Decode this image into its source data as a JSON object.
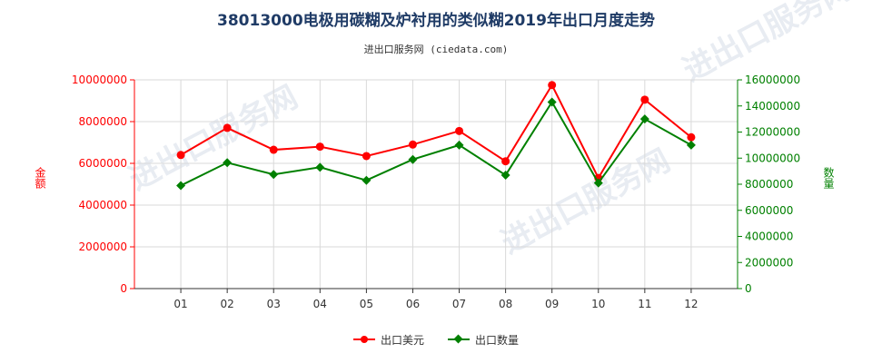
{
  "header": {
    "title": "38013000电极用碳糊及炉衬用的类似糊2019年出口月度走势",
    "subtitle": "进出口服务网 (ciedata.com)"
  },
  "watermark": "进出口服务网",
  "chart_data": {
    "type": "line",
    "categories": [
      "01",
      "02",
      "03",
      "04",
      "05",
      "06",
      "07",
      "08",
      "09",
      "10",
      "11",
      "12"
    ],
    "y_left": {
      "label": "金额",
      "range": [
        0,
        10000000
      ],
      "ticks": [
        "0",
        "2000000",
        "4000000",
        "6000000",
        "8000000",
        "10000000"
      ],
      "color": "#ff0000"
    },
    "y_right": {
      "label": "数量",
      "range": [
        0,
        16000000
      ],
      "ticks": [
        "0",
        "2000000",
        "4000000",
        "6000000",
        "8000000",
        "10000000",
        "12000000",
        "14000000",
        "16000000"
      ],
      "color": "#008000"
    },
    "series": [
      {
        "name": "出口美元",
        "axis": "left",
        "color": "#ff0000",
        "marker": "circle",
        "values": [
          6400000,
          7700000,
          6650000,
          6800000,
          6350000,
          6900000,
          7550000,
          6100000,
          9750000,
          5300000,
          9050000,
          7250000
        ]
      },
      {
        "name": "出口数量",
        "axis": "right",
        "color": "#008000",
        "marker": "diamond",
        "values": [
          7900000,
          9650000,
          8750000,
          9300000,
          8300000,
          9900000,
          11000000,
          8700000,
          14300000,
          8100000,
          13000000,
          11000000
        ]
      }
    ],
    "grid": true,
    "legend_position": "bottom-center"
  }
}
